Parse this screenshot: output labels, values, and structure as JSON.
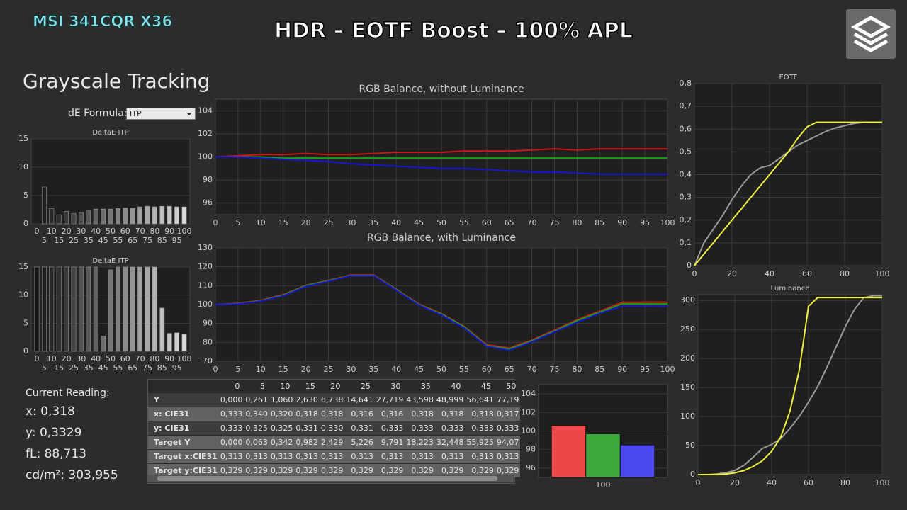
{
  "header": {
    "brand": "MSI 341CQR X36",
    "title": "HDR – EOTF Boost – 100% APL"
  },
  "panel": {
    "title": "Grayscale Tracking",
    "formula_label": "dE Formula:",
    "formula_value": "ITP"
  },
  "current_reading": {
    "title": "Current Reading:",
    "lines": [
      "x: 0,318",
      "y: 0,3329",
      "fL: 88,713",
      "cd/m²: 303,955"
    ]
  },
  "table": {
    "columns": [
      "0",
      "5",
      "10",
      "15",
      "20",
      "25",
      "30",
      "35",
      "40",
      "45",
      "50"
    ],
    "rows": [
      {
        "label": "Y",
        "cells": [
          "0,000",
          "0,261",
          "1,060",
          "2,630",
          "6,738",
          "14,641",
          "27,719",
          "43,598",
          "48,999",
          "56,641",
          "77,19"
        ]
      },
      {
        "label": "x: CIE31",
        "cells": [
          "0,333",
          "0,340",
          "0,320",
          "0,318",
          "0,318",
          "0,316",
          "0,316",
          "0,318",
          "0,318",
          "0,318",
          "0,317"
        ]
      },
      {
        "label": "y: CIE31",
        "cells": [
          "0,333",
          "0,325",
          "0,325",
          "0,331",
          "0,330",
          "0,331",
          "0,333",
          "0,333",
          "0,333",
          "0,333",
          "0,333"
        ]
      },
      {
        "label": "Target Y",
        "cells": [
          "0,000",
          "0,063",
          "0,342",
          "0,982",
          "2,429",
          "5,226",
          "9,791",
          "18,223",
          "32,448",
          "55,925",
          "94,07"
        ]
      },
      {
        "label": "Target x:CIE31",
        "cells": [
          "0,313",
          "0,313",
          "0,313",
          "0,313",
          "0,313",
          "0,313",
          "0,313",
          "0,313",
          "0,313",
          "0,313",
          "0,313"
        ]
      },
      {
        "label": "Target y:CIE31",
        "cells": [
          "0,329",
          "0,329",
          "0,329",
          "0,329",
          "0,329",
          "0,329",
          "0,329",
          "0,329",
          "0,329",
          "0,329",
          "0,329"
        ]
      }
    ]
  },
  "chart_data": [
    {
      "type": "bar",
      "title": "DeltaE ITP",
      "categories": [
        "0",
        "5",
        "10",
        "15",
        "20",
        "25",
        "30",
        "35",
        "40",
        "45",
        "50",
        "55",
        "60",
        "65",
        "70",
        "75",
        "80",
        "85",
        "90",
        "95",
        "100"
      ],
      "values": [
        0,
        6.5,
        2.7,
        1.6,
        2.2,
        1.8,
        2.0,
        2.4,
        2.6,
        2.6,
        2.6,
        2.7,
        2.8,
        2.7,
        3.0,
        3.1,
        3.0,
        3.1,
        3.1,
        3.0,
        3.0
      ],
      "colors": [
        "#151515",
        "#1c1c1c",
        "#262626",
        "#303030",
        "#3a3a3a",
        "#444444",
        "#4e4e4e",
        "#585858",
        "#626262",
        "#6c6c6c",
        "#767676",
        "#808080",
        "#8a8a8a",
        "#949494",
        "#9e9e9e",
        "#a8a8a8",
        "#b2b2b2",
        "#bcbcbc",
        "#c6c6c6",
        "#d0d0d0",
        "#dadada"
      ],
      "ylim": [
        0,
        15
      ],
      "yticks": [
        0,
        5,
        10,
        15
      ],
      "grid": true
    },
    {
      "type": "bar",
      "title": "DeltaE ITP",
      "categories": [
        "0",
        "5",
        "10",
        "15",
        "20",
        "25",
        "30",
        "35",
        "40",
        "45",
        "50",
        "55",
        "60",
        "65",
        "70",
        "75",
        "80",
        "85",
        "90",
        "95",
        "100"
      ],
      "values": [
        15,
        15,
        15,
        15,
        15,
        15,
        15,
        15,
        15,
        2.7,
        14.5,
        15,
        15,
        15,
        15,
        15,
        15,
        7.7,
        3.2,
        3.3,
        3.0
      ],
      "colors": [
        "#151515",
        "#1c1c1c",
        "#262626",
        "#303030",
        "#3a3a3a",
        "#444444",
        "#4e4e4e",
        "#585858",
        "#626262",
        "#6c6c6c",
        "#767676",
        "#808080",
        "#8a8a8a",
        "#949494",
        "#9e9e9e",
        "#a8a8a8",
        "#b2b2b2",
        "#bcbcbc",
        "#c6c6c6",
        "#d0d0d0",
        "#dadada"
      ],
      "ylim": [
        0,
        15
      ],
      "yticks": [
        0,
        5,
        10,
        15
      ],
      "grid": true
    },
    {
      "type": "line",
      "title": "RGB Balance, without Luminance",
      "x": [
        0,
        5,
        10,
        15,
        20,
        25,
        30,
        35,
        40,
        45,
        50,
        55,
        60,
        65,
        70,
        75,
        80,
        85,
        90,
        95,
        100
      ],
      "xlim": [
        0,
        100
      ],
      "xticks": [
        0,
        5,
        10,
        15,
        20,
        25,
        30,
        35,
        40,
        45,
        50,
        55,
        60,
        65,
        70,
        75,
        80,
        85,
        90,
        95,
        100
      ],
      "ylim": [
        95,
        105
      ],
      "yticks": [
        96,
        98,
        100,
        102,
        104
      ],
      "grid": true,
      "series": [
        {
          "color": "#d01515",
          "values": [
            100,
            100.1,
            100.2,
            100.2,
            100.3,
            100.2,
            100.2,
            100.3,
            100.4,
            100.4,
            100.4,
            100.5,
            100.5,
            100.5,
            100.6,
            100.7,
            100.6,
            100.7,
            100.7,
            100.7,
            100.7
          ]
        },
        {
          "color": "#15a015",
          "values": [
            100,
            100,
            100,
            99.9,
            99.9,
            99.9,
            99.9,
            99.9,
            99.9,
            99.9,
            99.9,
            99.9,
            99.9,
            99.9,
            99.9,
            99.9,
            99.9,
            99.9,
            99.9,
            99.9,
            99.9
          ]
        },
        {
          "color": "#1515d8",
          "values": [
            100,
            100,
            99.9,
            99.8,
            99.7,
            99.6,
            99.4,
            99.3,
            99.2,
            99.1,
            99.0,
            99.0,
            98.9,
            98.8,
            98.7,
            98.7,
            98.6,
            98.5,
            98.5,
            98.5,
            98.5
          ]
        }
      ]
    },
    {
      "type": "line",
      "title": "RGB Balance, with Luminance",
      "x": [
        0,
        5,
        10,
        15,
        20,
        25,
        30,
        35,
        40,
        45,
        50,
        55,
        60,
        65,
        70,
        75,
        80,
        85,
        90,
        95,
        100
      ],
      "xlim": [
        0,
        100
      ],
      "xticks": [
        0,
        5,
        10,
        15,
        20,
        25,
        30,
        35,
        40,
        45,
        50,
        55,
        60,
        65,
        70,
        75,
        80,
        85,
        90,
        95,
        100
      ],
      "ylim": [
        70,
        130
      ],
      "yticks": [
        70,
        80,
        90,
        100,
        110,
        120,
        130
      ],
      "grid": true,
      "series": [
        {
          "color": "#d01515",
          "values": [
            100,
            100.7,
            102.2,
            105.3,
            110.2,
            112.8,
            115.7,
            115.7,
            108.2,
            100.3,
            95.3,
            88.5,
            78.8,
            77.0,
            81.2,
            86.5,
            92.0,
            96.5,
            101.2,
            101.3,
            101.3
          ]
        },
        {
          "color": "#15a015",
          "values": [
            100,
            100.5,
            102,
            105,
            110,
            112.6,
            115.5,
            115.5,
            108,
            100,
            95,
            88.2,
            78.3,
            76.5,
            80.8,
            86,
            91.5,
            96,
            100.4,
            100.4,
            100.4
          ]
        },
        {
          "color": "#1515d8",
          "values": [
            100,
            100.3,
            101.8,
            104.6,
            109.6,
            112.3,
            115.3,
            115.3,
            107.6,
            99.7,
            94.5,
            87.6,
            77.9,
            75.8,
            80.3,
            85.5,
            90.6,
            95.3,
            99.2,
            99.2,
            99.1
          ]
        }
      ]
    },
    {
      "type": "line",
      "title": "EOTF",
      "x": [
        0,
        5,
        10,
        15,
        20,
        25,
        30,
        35,
        40,
        45,
        50,
        55,
        60,
        65,
        70,
        75,
        80,
        85,
        90,
        95,
        100
      ],
      "xlim": [
        0,
        100
      ],
      "xticks": [
        0,
        20,
        40,
        60,
        80,
        100
      ],
      "ylim": [
        0,
        0.8
      ],
      "yticks": [
        0,
        {
          "value": 0.1,
          "label": "0,1"
        },
        {
          "value": 0.2,
          "label": "0,2"
        },
        {
          "value": 0.3,
          "label": "0,3"
        },
        {
          "value": 0.4,
          "label": "0,4"
        },
        {
          "value": 0.5,
          "label": "0,5"
        },
        {
          "value": 0.6,
          "label": "0,6"
        },
        {
          "value": 0.7,
          "label": "0,7"
        },
        {
          "value": 0.8,
          "label": "0,8"
        }
      ],
      "grid": true,
      "series": [
        {
          "color": "#9a9a9a",
          "values": [
            0,
            0.1,
            0.16,
            0.22,
            0.29,
            0.35,
            0.4,
            0.43,
            0.44,
            0.47,
            0.5,
            0.53,
            0.55,
            0.57,
            0.59,
            0.605,
            0.615,
            0.625,
            0.63,
            0.63,
            0.63
          ]
        },
        {
          "color": "#f2f23c",
          "values": [
            0,
            0.05,
            0.1,
            0.15,
            0.2,
            0.25,
            0.3,
            0.35,
            0.4,
            0.45,
            0.5,
            0.56,
            0.61,
            0.63,
            0.63,
            0.63,
            0.63,
            0.63,
            0.63,
            0.63,
            0.63
          ]
        }
      ]
    },
    {
      "type": "line",
      "title": "Luminance",
      "x": [
        0,
        5,
        10,
        15,
        20,
        25,
        30,
        35,
        40,
        45,
        50,
        55,
        60,
        65,
        70,
        75,
        80,
        85,
        90,
        95,
        100
      ],
      "xlim": [
        0,
        100
      ],
      "xticks": [
        0,
        20,
        40,
        60,
        80,
        100
      ],
      "ylim": [
        0,
        310
      ],
      "yticks": [
        0,
        50,
        100,
        150,
        200,
        250,
        300
      ],
      "grid": true,
      "series": [
        {
          "color": "#9a9a9a",
          "values": [
            0,
            0,
            1,
            3,
            7,
            16,
            30,
            45,
            52,
            62,
            80,
            100,
            125,
            152,
            185,
            220,
            255,
            285,
            305,
            308,
            308
          ]
        },
        {
          "color": "#f2f23c",
          "values": [
            0,
            0,
            0,
            1,
            3,
            7,
            14,
            24,
            40,
            65,
            110,
            180,
            290,
            305,
            305,
            305,
            305,
            305,
            305,
            305,
            305
          ]
        }
      ]
    },
    {
      "type": "bar",
      "categories": [
        "100"
      ],
      "ylim": [
        95,
        105
      ],
      "yticks": [
        96,
        98,
        100,
        102,
        104
      ],
      "grid": true,
      "series": [
        {
          "color": "#f04848",
          "values": [
            100.6
          ]
        },
        {
          "color": "#3ca83c",
          "values": [
            99.7
          ]
        },
        {
          "color": "#4a4af0",
          "values": [
            98.5
          ]
        }
      ]
    }
  ]
}
